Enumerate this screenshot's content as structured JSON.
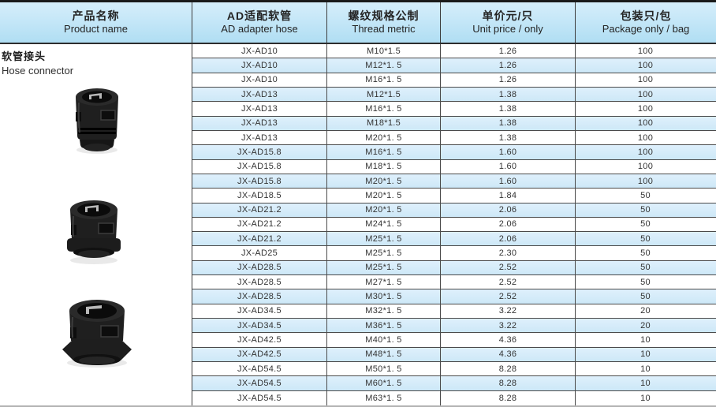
{
  "left_panel": {
    "title_cn": "软管接头",
    "title_en": "Hose connector"
  },
  "table": {
    "headers": [
      {
        "cn": "产品名称",
        "en": "Product name"
      },
      {
        "cn": "AD适配软管",
        "en": "AD adapter hose"
      },
      {
        "cn": "螺纹规格公制",
        "en": "Thread metric"
      },
      {
        "cn": "单价元/只",
        "en": "Unit price / only"
      },
      {
        "cn": "包装只/包",
        "en": "Package only / bag"
      }
    ],
    "rows": [
      [
        "JX-AD10",
        "M10*1.5",
        "1.26",
        "100"
      ],
      [
        "JX-AD10",
        "M12*1. 5",
        "1.26",
        "100"
      ],
      [
        "JX-AD10",
        "M16*1. 5",
        "1.26",
        "100"
      ],
      [
        "JX-AD13",
        "M12*1.5",
        "1.38",
        "100"
      ],
      [
        "JX-AD13",
        "M16*1. 5",
        "1.38",
        "100"
      ],
      [
        "JX-AD13",
        "M18*1.5",
        "1.38",
        "100"
      ],
      [
        "JX-AD13",
        "M20*1. 5",
        "1.38",
        "100"
      ],
      [
        "JX-AD15.8",
        "M16*1. 5",
        "1.60",
        "100"
      ],
      [
        "JX-AD15.8",
        "M18*1. 5",
        "1.60",
        "100"
      ],
      [
        "JX-AD15.8",
        "M20*1. 5",
        "1.60",
        "100"
      ],
      [
        "JX-AD18.5",
        "M20*1. 5",
        "1.84",
        "50"
      ],
      [
        "JX-AD21.2",
        "M20*1. 5",
        "2.06",
        "50"
      ],
      [
        "JX-AD21.2",
        "M24*1. 5",
        "2.06",
        "50"
      ],
      [
        "JX-AD21.2",
        "M25*1. 5",
        "2.06",
        "50"
      ],
      [
        "JX-AD25",
        "M25*1. 5",
        "2.30",
        "50"
      ],
      [
        "JX-AD28.5",
        "M25*1. 5",
        "2.52",
        "50"
      ],
      [
        "JX-AD28.5",
        "M27*1. 5",
        "2.52",
        "50"
      ],
      [
        "JX-AD28.5",
        "M30*1. 5",
        "2.52",
        "50"
      ],
      [
        "JX-AD34.5",
        "M32*1. 5",
        "3.22",
        "20"
      ],
      [
        "JX-AD34.5",
        "M36*1. 5",
        "3.22",
        "20"
      ],
      [
        "JX-AD42.5",
        "M40*1. 5",
        "4.36",
        "10"
      ],
      [
        "JX-AD42.5",
        "M48*1. 5",
        "4.36",
        "10"
      ],
      [
        "JX-AD54.5",
        "M50*1. 5",
        "8.28",
        "10"
      ],
      [
        "JX-AD54.5",
        "M60*1. 5",
        "8.28",
        "10"
      ],
      [
        "JX-AD54.5",
        "M63*1. 5",
        "8.28",
        "10"
      ]
    ]
  },
  "colors": {
    "header_gradient_top": "#d6eefb",
    "header_gradient_bottom": "#b0def3",
    "alt_row_top": "#dff0fc",
    "alt_row_bottom": "#cde8f7",
    "grid_border": "#4a4a4a",
    "page_top_border": "#1a1a1a",
    "page_bottom_border": "#b3b3b3",
    "text": "#333333"
  }
}
